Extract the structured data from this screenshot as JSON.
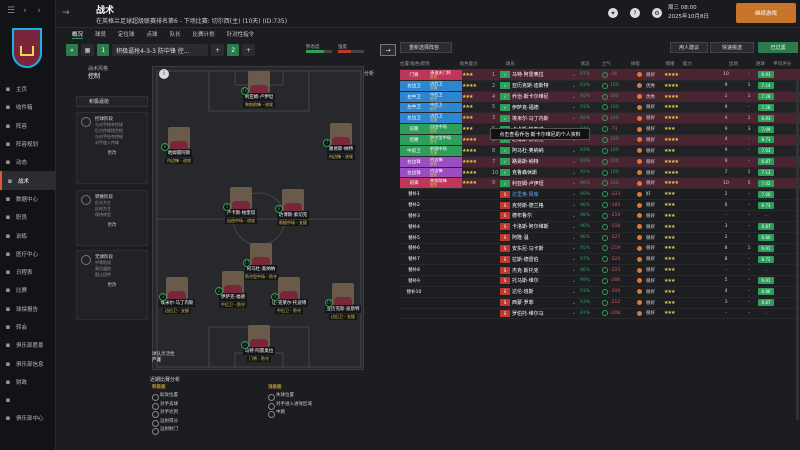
{
  "header": {
    "title": "战术",
    "subtitle": "在英格兰足球超级联赛排名第6 - 下场比赛: 切尔西(主) (10天) (ID:735)",
    "date_line1": "周三 08:00",
    "date_line2": "2025年10月8日",
    "continue_label": "继续游戏"
  },
  "sidebar": {
    "items": [
      {
        "label": "主页",
        "icon": "home-icon"
      },
      {
        "label": "收件箱",
        "icon": "inbox-icon"
      },
      {
        "label": "阵容",
        "icon": "squad-icon"
      },
      {
        "label": "阵容规划",
        "icon": "planner-icon"
      },
      {
        "label": "动态",
        "icon": "dynamics-icon"
      },
      {
        "label": "战术",
        "icon": "tactics-icon"
      },
      {
        "label": "数据中心",
        "icon": "data-icon"
      },
      {
        "label": "职员",
        "icon": "staff-icon"
      },
      {
        "label": "训练",
        "icon": "training-icon"
      },
      {
        "label": "医疗中心",
        "icon": "medical-icon"
      },
      {
        "label": "日程表",
        "icon": "calendar-icon"
      },
      {
        "label": "比赛",
        "icon": "match-icon"
      },
      {
        "label": "球探报告",
        "icon": "scouting-icon"
      },
      {
        "label": "转会",
        "icon": "transfer-icon"
      },
      {
        "label": "俱乐部愿景",
        "icon": "vision-icon"
      },
      {
        "label": "俱乐部信息",
        "icon": "info-icon"
      },
      {
        "label": "财政",
        "icon": "finance-icon"
      },
      {
        "label": "",
        "icon": "blank-icon"
      },
      {
        "label": "俱乐部中心",
        "icon": "hub-icon"
      }
    ]
  },
  "tabs": [
    "概况",
    "球员",
    "定位球",
    "点球",
    "队长",
    "比赛计划",
    "针对性指令"
  ],
  "tactic": {
    "slot1": "1",
    "name": "积极逼抢4-3-3 防中锋 控...",
    "slot2": "2",
    "familiarity_label": "熟悉度",
    "familiarity": 0.7,
    "intensity_label": "强度",
    "intensity": 0.5
  },
  "left_panel": {
    "style_label": "战术风格",
    "style_value": "控制",
    "style_sub": "积极逼抢",
    "panels": [
      {
        "title": "控球阶段",
        "lines": [
          "与对手抢夺控球",
          "后方传球找空档",
          "与对手抢夺控球",
          "对手放入传球"
        ],
        "more": "更改"
      },
      {
        "title": "转换阶段",
        "lines": [
          "反击为主",
          "反抢为主",
          "保持阵型"
        ],
        "more": "更改"
      },
      {
        "title": "无球阶段",
        "lines": [
          "中等防线",
          "高位逼抢",
          "阻止回传"
        ],
        "more": "更改"
      }
    ]
  },
  "pitch": {
    "analysis_label": "分析",
    "players": [
      {
        "num": "10",
        "name": "利亚姆·卢伊坦",
        "role": "突前前锋",
        "tag": "进攻"
      },
      {
        "num": "8",
        "name": "哈姆雷阿斯",
        "role": "内边锋",
        "tag": "进攻"
      },
      {
        "num": "7",
        "name": "路易斯·纳特",
        "role": "内边锋",
        "tag": "进攻"
      },
      {
        "num": "5",
        "name": "卢卡斯·帕奎塔",
        "role": "自由中场",
        "tag": "进攻"
      },
      {
        "num": "6",
        "name": "达博斯·索切克",
        "role": "前插中场",
        "tag": "支援"
      },
      {
        "num": "17",
        "name": "阿马杜·奥纳纳",
        "role": "防守型中场",
        "tag": "防守"
      },
      {
        "num": "3",
        "name": "埃米尔·马丁内斯",
        "role": "边后卫",
        "tag": "支援"
      },
      {
        "num": "2",
        "name": "伊萨克·福德",
        "role": "中后卫",
        "tag": "防守"
      },
      {
        "num": "4",
        "name": "让-克莱尔·托迪博",
        "role": "中后卫",
        "tag": "防守"
      },
      {
        "num": "15",
        "name": "亚历克斯·迪斯特",
        "role": "边后卫",
        "tag": "支援"
      },
      {
        "num": "1",
        "name": "马特·阿雷奥拉",
        "role": "门将",
        "tag": "防守"
      }
    ],
    "formation_label": "球队灵活性",
    "formation_value": "严谨"
  },
  "bottom": {
    "recent_label": "近期比赛分析",
    "own_label": "积极面",
    "own_items": [
      "助攻位置",
      "对手丢球",
      "对手达到",
      "远射得分",
      "远射射门"
    ],
    "opp_label": "消极面",
    "opp_items": [
      "失球位置",
      "对手进入进攻区域",
      "中路"
    ]
  },
  "right": {
    "toolbar": {
      "select_label": "重新选择阵容",
      "btn1": "用人建议",
      "btn2": "快速挑选",
      "btn3": "已过滤"
    },
    "headers": [
      "位置/角色/职责",
      "角色能力",
      "",
      "球员",
      "",
      "状态",
      "士气",
      "体能",
      "",
      "情绪",
      "能力",
      "出场",
      "进球",
      "平均评分"
    ],
    "tooltip": "点击查看乔治·斯卡尔维尼的个人资料",
    "rows": [
      {
        "pos": "门将",
        "role": "清道夫门将",
        "duty": "进攻",
        "stars": "★★★",
        "ord": "1",
        "name": "马特·阿雷奥拉",
        "cond": "97%",
        "morale": "-36",
        "mood": "很好",
        "ability": "★★★★",
        "apps": "10",
        "goals": "-",
        "rating": "6.93",
        "color": "#c0365a"
      },
      {
        "pos": "右边卫",
        "role": "边后卫",
        "duty": "支援",
        "stars": "★★★★",
        "ord": "2",
        "name": "亚历克斯·迪斯特",
        "cond": "93%",
        "morale": "100",
        "mood": "优秀",
        "ability": "★★★★",
        "apps": "9",
        "goals": "1",
        "rating": "7.14",
        "color": "#2e86d1"
      },
      {
        "pos": "右中卫",
        "role": "中后卫",
        "duty": "防守",
        "stars": "★★★",
        "ord": "4",
        "name": "乔治·斯卡尔维尼",
        "cond": "95%",
        "morale": "100",
        "mood": "优秀",
        "ability": "★★★★",
        "apps": "1",
        "goals": "1",
        "rating": "7.28",
        "color": "#2e86d1"
      },
      {
        "pos": "左中卫",
        "role": "中后卫",
        "duty": "防守",
        "stars": "★★★",
        "ord": "5",
        "name": "伊萨克·福德",
        "cond": "93%",
        "morale": "100",
        "mood": "很好",
        "ability": "★★★★",
        "apps": "9",
        "goals": "-",
        "rating": "7.28",
        "color": "#2e86d1"
      },
      {
        "pos": "左边卫",
        "role": "边后卫",
        "duty": "支援",
        "stars": "★★★",
        "ord": "3",
        "name": "埃米尔·马丁内斯",
        "cond": "92%",
        "morale": "100",
        "mood": "很好",
        "ability": "★★★★",
        "apps": "4",
        "goals": "1",
        "rating": "6.93",
        "color": "#2e86d1"
      },
      {
        "pos": "前腰",
        "role": "自由中场",
        "duty": "进攻",
        "stars": "★★★",
        "ord": "5",
        "name": "卢卡斯·帕奎塔",
        "cond": "84%",
        "morale": "-73",
        "mood": "很好",
        "ability": "★★★",
        "apps": "9",
        "goals": "3",
        "rating": "7.09",
        "color": "#2e9e5b"
      },
      {
        "pos": "后腰",
        "role": "防守型中场",
        "duty": "防守",
        "stars": "★★★★",
        "ord": "6",
        "name": "达博斯·索切克",
        "cond": "95%",
        "morale": "100",
        "mood": "很好",
        "ability": "★★★★",
        "apps": "4",
        "goals": "-",
        "rating": "6.73",
        "color": "#2e9e5b"
      },
      {
        "pos": "中前卫",
        "role": "前插中场",
        "duty": "支援",
        "stars": "★★★★",
        "ord": "8",
        "name": "阿马杜·奥纳纳",
        "cond": "93%",
        "morale": "100",
        "mood": "很好",
        "ability": "★★★",
        "apps": "9",
        "goals": "-",
        "rating": "7.03",
        "color": "#2e9e5b"
      },
      {
        "pos": "右边锋",
        "role": "内边锋",
        "duty": "进攻",
        "stars": "★★★★",
        "ord": "7",
        "name": "路易斯·纳特",
        "cond": "93%",
        "morale": "100",
        "mood": "很好",
        "ability": "★★★★",
        "apps": "9",
        "goals": "-",
        "rating": "6.87",
        "color": "#9b4ec2"
      },
      {
        "pos": "左边锋",
        "role": "内边锋",
        "duty": "进攻",
        "stars": "★★★★",
        "ord": "10",
        "name": "克鲁森休斯",
        "cond": "92%",
        "morale": "100",
        "mood": "很好",
        "ability": "★★★★",
        "apps": "7",
        "goals": "1",
        "rating": "7.13",
        "color": "#9b4ec2"
      },
      {
        "pos": "前锋",
        "role": "突前前锋",
        "duty": "进攻",
        "stars": "★★★★",
        "ord": "9",
        "name": "利亚姆·卢伊坦",
        "cond": "96%",
        "morale": "100",
        "mood": "很好",
        "ability": "★★★★",
        "apps": "10",
        "goals": "5",
        "rating": "7.02",
        "color": "#c0365a"
      },
      {
        "pos": "替补1",
        "role": "",
        "duty": "",
        "stars": "",
        "ord": "",
        "name": "达里奥·佩库",
        "cond": "99%",
        "morale": "-223",
        "mood": "好",
        "ability": "★★★",
        "apps": "2",
        "goals": "-",
        "rating": "7.00",
        "color": ""
      },
      {
        "pos": "替补2",
        "role": "",
        "duty": "",
        "stars": "",
        "ord": "",
        "name": "克劳斯·德兰格",
        "cond": "96%",
        "morale": "-185",
        "mood": "很好",
        "ability": "★★★",
        "apps": "6",
        "goals": "-",
        "rating": "6.73",
        "color": ""
      },
      {
        "pos": "替补3",
        "role": "",
        "duty": "",
        "stars": "",
        "ord": "",
        "name": "德布鲁尔",
        "cond": "98%",
        "morale": "-219",
        "mood": "很好",
        "ability": "★★★",
        "apps": "-",
        "goals": "-",
        "rating": "-",
        "color": ""
      },
      {
        "pos": "替补4",
        "role": "",
        "duty": "",
        "stars": "",
        "ord": "",
        "name": "卡洛斯·阿尔维斯",
        "cond": "96%",
        "morale": "-218",
        "mood": "很好",
        "ability": "★★★",
        "apps": "3",
        "goals": "-",
        "rating": "6.87",
        "color": ""
      },
      {
        "pos": "替补5",
        "role": "",
        "duty": "",
        "stars": "",
        "ord": "",
        "name": "阿隆·温",
        "cond": "96%",
        "morale": "-227",
        "mood": "很好",
        "ability": "★★★",
        "apps": "2",
        "goals": "-",
        "rating": "6.80",
        "color": ""
      },
      {
        "pos": "替补6",
        "role": "",
        "duty": "",
        "stars": "",
        "ord": "",
        "name": "安东尼·马卡斯",
        "cond": "95%",
        "morale": "-219",
        "mood": "很好",
        "ability": "★★★",
        "apps": "8",
        "goals": "1",
        "rating": "6.91",
        "color": ""
      },
      {
        "pos": "替补7",
        "role": "",
        "duty": "",
        "stars": "",
        "ord": "",
        "name": "拉斯·德雷伯",
        "cond": "97%",
        "morale": "-220",
        "mood": "很好",
        "ability": "★★★",
        "apps": "8",
        "goals": "-",
        "rating": "6.72",
        "color": ""
      },
      {
        "pos": "替补8",
        "role": "",
        "duty": "",
        "stars": "",
        "ord": "",
        "name": "杰克·斯托克",
        "cond": "96%",
        "morale": "-223",
        "mood": "很好",
        "ability": "★★★",
        "apps": "-",
        "goals": "-",
        "rating": "-",
        "color": ""
      },
      {
        "pos": "替补9",
        "role": "",
        "duty": "",
        "stars": "",
        "ord": "",
        "name": "托马斯·维尔",
        "cond": "99%",
        "morale": "-206",
        "mood": "很好",
        "ability": "★★★",
        "apps": "5",
        "goals": "-",
        "rating": "6.91",
        "color": ""
      },
      {
        "pos": "替补10",
        "role": "",
        "duty": "",
        "stars": "",
        "ord": "",
        "name": "达伦·班斯",
        "cond": "93%",
        "morale": "-209",
        "mood": "很好",
        "ability": "★★★",
        "apps": "4",
        "goals": "-",
        "rating": "6.86",
        "color": ""
      },
      {
        "pos": "",
        "role": "",
        "duty": "",
        "stars": "",
        "ord": "",
        "name": "西蒙·罗菲",
        "cond": "93%",
        "morale": "-212",
        "mood": "很好",
        "ability": "★★★",
        "apps": "3",
        "goals": "-",
        "rating": "6.87",
        "color": ""
      },
      {
        "pos": "",
        "role": "",
        "duty": "",
        "stars": "",
        "ord": "",
        "name": "罗伯托·维尔马",
        "cond": "97%",
        "morale": "-208",
        "mood": "很好",
        "ability": "★★★",
        "apps": "-",
        "goals": "-",
        "rating": "-",
        "color": ""
      }
    ]
  }
}
